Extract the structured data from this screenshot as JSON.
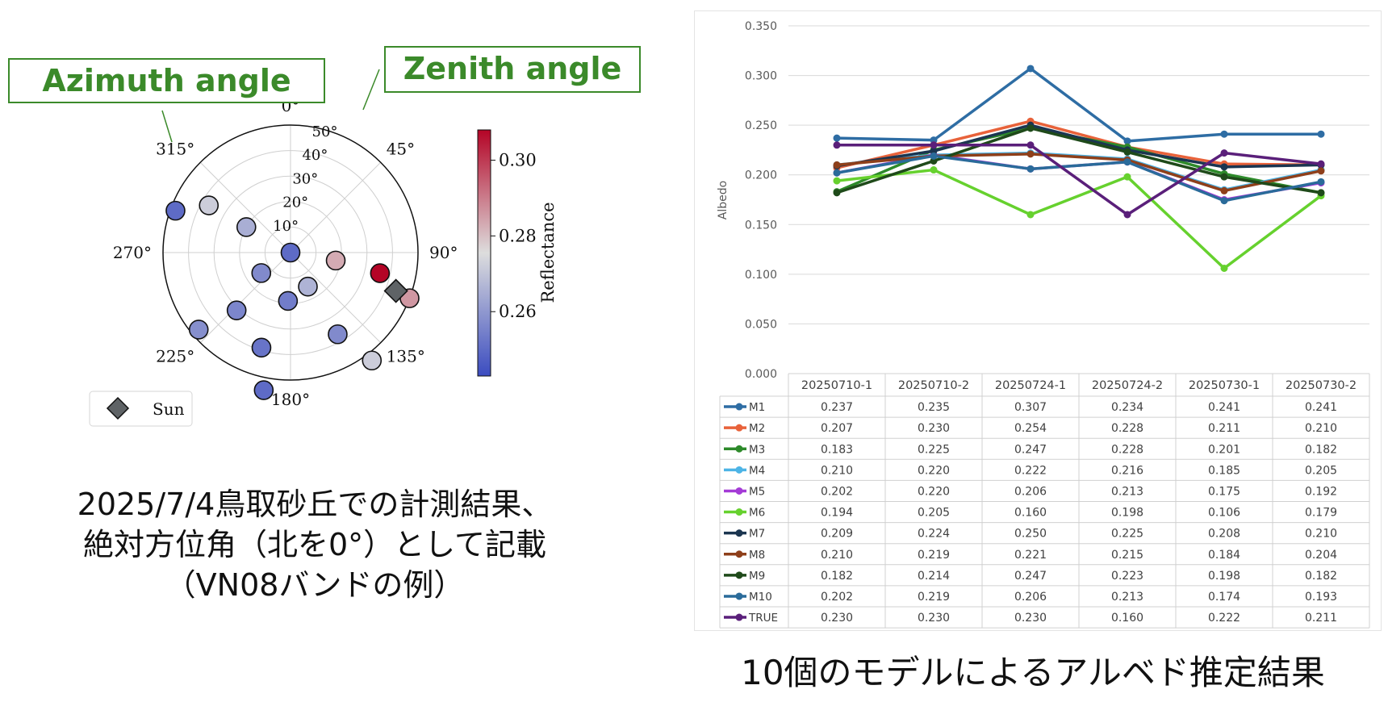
{
  "callouts": {
    "azimuth": "Azimuth angle",
    "zenith": "Zenith angle"
  },
  "captions": {
    "left_lines": [
      "2025/7/4鳥取砂丘での計測結果、",
      "絶対方位角（北を0°）として記載",
      "（VN08バンドの例）"
    ],
    "right": "10個のモデルによるアルベド推定結果"
  },
  "chart_data": [
    {
      "type": "scatter",
      "subtype": "polar",
      "azimuth_ticks": [
        "0°",
        "45°",
        "90°",
        "135°",
        "180°",
        "225°",
        "270°",
        "315°"
      ],
      "radial_ticks": [
        "10°",
        "20°",
        "30°",
        "40°",
        "50°"
      ],
      "radial_max": 50,
      "colorbar": {
        "label": "Reflectance",
        "min": 0.243,
        "max": 0.308,
        "ticks": [
          "0.26",
          "0.28",
          "0.30"
        ],
        "tick_values": [
          0.26,
          0.28,
          0.3
        ],
        "colors": [
          "#3b4cc0",
          "#dddddd",
          "#b40426"
        ]
      },
      "points": [
        {
          "azimuth": 0,
          "zenith": 0,
          "value": 0.25
        },
        {
          "azimuth": 290,
          "zenith": 48,
          "value": 0.25
        },
        {
          "azimuth": 300,
          "zenith": 37,
          "value": 0.272
        },
        {
          "azimuth": 300,
          "zenith": 20,
          "value": 0.265
        },
        {
          "azimuth": 100,
          "zenith": 18,
          "value": 0.283
        },
        {
          "azimuth": 103,
          "zenith": 36,
          "value": 0.308
        },
        {
          "azimuth": 111,
          "zenith": 50,
          "value": 0.286
        },
        {
          "azimuth": 235,
          "zenith": 14,
          "value": 0.257
        },
        {
          "azimuth": 223,
          "zenith": 31,
          "value": 0.256
        },
        {
          "azimuth": 230,
          "zenith": 47,
          "value": 0.258
        },
        {
          "azimuth": 183,
          "zenith": 19,
          "value": 0.254
        },
        {
          "azimuth": 153,
          "zenith": 15,
          "value": 0.266
        },
        {
          "azimuth": 197,
          "zenith": 39,
          "value": 0.252
        },
        {
          "azimuth": 150,
          "zenith": 37,
          "value": 0.257
        },
        {
          "azimuth": 143,
          "zenith": 53,
          "value": 0.272
        },
        {
          "azimuth": 191,
          "zenith": 55,
          "value": 0.25
        }
      ],
      "sun": {
        "azimuth": 110,
        "zenith": 44,
        "label": "Sun",
        "color": "#5f6366"
      }
    },
    {
      "type": "line",
      "ylabel": "Albedo",
      "ylim": [
        0,
        0.35
      ],
      "yticks": [
        "0.000",
        "0.050",
        "0.100",
        "0.150",
        "0.200",
        "0.250",
        "0.300",
        "0.350"
      ],
      "ytick_values": [
        0,
        0.05,
        0.1,
        0.15,
        0.2,
        0.25,
        0.3,
        0.35
      ],
      "categories": [
        "20250710-1",
        "20250710-2",
        "20250724-1",
        "20250724-2",
        "20250730-1",
        "20250730-2"
      ],
      "series": [
        {
          "name": "M1",
          "color": "#2e6da4",
          "values": [
            "0.237",
            "0.235",
            "0.307",
            "0.234",
            "0.241",
            "0.241"
          ]
        },
        {
          "name": "M2",
          "color": "#e8623a",
          "values": [
            "0.207",
            "0.230",
            "0.254",
            "0.228",
            "0.211",
            "0.210"
          ]
        },
        {
          "name": "M3",
          "color": "#2d8a2a",
          "values": [
            "0.183",
            "0.225",
            "0.247",
            "0.228",
            "0.201",
            "0.182"
          ]
        },
        {
          "name": "M4",
          "color": "#4db4e6",
          "values": [
            "0.210",
            "0.220",
            "0.222",
            "0.216",
            "0.185",
            "0.205"
          ]
        },
        {
          "name": "M5",
          "color": "#a43bd6",
          "values": [
            "0.202",
            "0.220",
            "0.206",
            "0.213",
            "0.175",
            "0.192"
          ]
        },
        {
          "name": "M6",
          "color": "#66d12e",
          "values": [
            "0.194",
            "0.205",
            "0.160",
            "0.198",
            "0.106",
            "0.179"
          ]
        },
        {
          "name": "M7",
          "color": "#1b3550",
          "values": [
            "0.209",
            "0.224",
            "0.250",
            "0.225",
            "0.208",
            "0.210"
          ]
        },
        {
          "name": "M8",
          "color": "#8e3f1a",
          "values": [
            "0.210",
            "0.219",
            "0.221",
            "0.215",
            "0.184",
            "0.204"
          ]
        },
        {
          "name": "M9",
          "color": "#1f4a1a",
          "values": [
            "0.182",
            "0.214",
            "0.247",
            "0.223",
            "0.198",
            "0.182"
          ]
        },
        {
          "name": "M10",
          "color": "#2a6b9a",
          "values": [
            "0.202",
            "0.219",
            "0.206",
            "0.213",
            "0.174",
            "0.193"
          ]
        },
        {
          "name": "TRUE",
          "color": "#5a1f7a",
          "values": [
            "0.230",
            "0.230",
            "0.230",
            "0.160",
            "0.222",
            "0.211"
          ]
        }
      ]
    }
  ]
}
